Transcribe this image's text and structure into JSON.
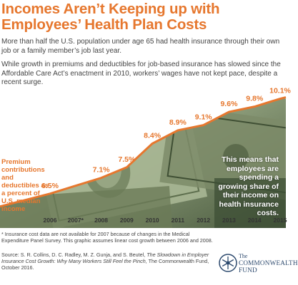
{
  "title": "Incomes Aren’t Keeping up with Employees’ Health Plan Costs",
  "intro": [
    "More than half the U.S. population under age 65 had health insurance through their own job or a family member’s job last year.",
    "While growth in premiums and deductibles for job-based insurance has slowed since the Affordable Care Act’s enactment in 2010, workers’ wages have not kept pace, despite a recent surge."
  ],
  "chart_data": {
    "type": "area",
    "categories": [
      "2006",
      "2007*",
      "2008",
      "2009",
      "2010",
      "2011",
      "2012",
      "2013",
      "2014",
      "2015"
    ],
    "x": [
      2006,
      2007,
      2008,
      2009,
      2010,
      2011,
      2012,
      2013,
      2014,
      2015
    ],
    "values": [
      6.5,
      6.8,
      7.1,
      7.5,
      8.4,
      8.9,
      9.1,
      9.6,
      9.8,
      10.1
    ],
    "data_labels": [
      "6.5%",
      "",
      "7.1%",
      "7.5%",
      "8.4%",
      "8.9%",
      "9.1%",
      "9.6%",
      "9.8%",
      "10.1%"
    ],
    "series_label": "Premium contributions and deductibles as a percent of U.S. median income",
    "annotation": "This means that employees are spending a growing share of their income on health insurance costs.",
    "ylim": [
      5.2,
      10.6
    ],
    "grid": false,
    "colors": {
      "line": "#e6772e",
      "label": "#e6772e",
      "photo_dark": "#3d4f35",
      "photo_light": "#b7c4a4"
    }
  },
  "footnote": "* Insurance cost data are not available for 2007 because of changes in the Medical Expenditure Panel Survey. This graphic assumes linear cost growth between 2006 and 2008.",
  "source": {
    "prefix": "Source: S. R. Collins, D. C. Radley, M. Z. Gunja, and S. Beutel,",
    "title": "The Slowdown in Employer Insurance Cost Growth: Why Many Workers Still Feel the Pinch,",
    "suffix": "The Commonwealth Fund, October 2016."
  },
  "logo": {
    "the": "The",
    "line1": "COMMONWEALTH",
    "line2": "FUND",
    "icon": "snowflake-seal-icon",
    "color": "#2d4a6e"
  }
}
